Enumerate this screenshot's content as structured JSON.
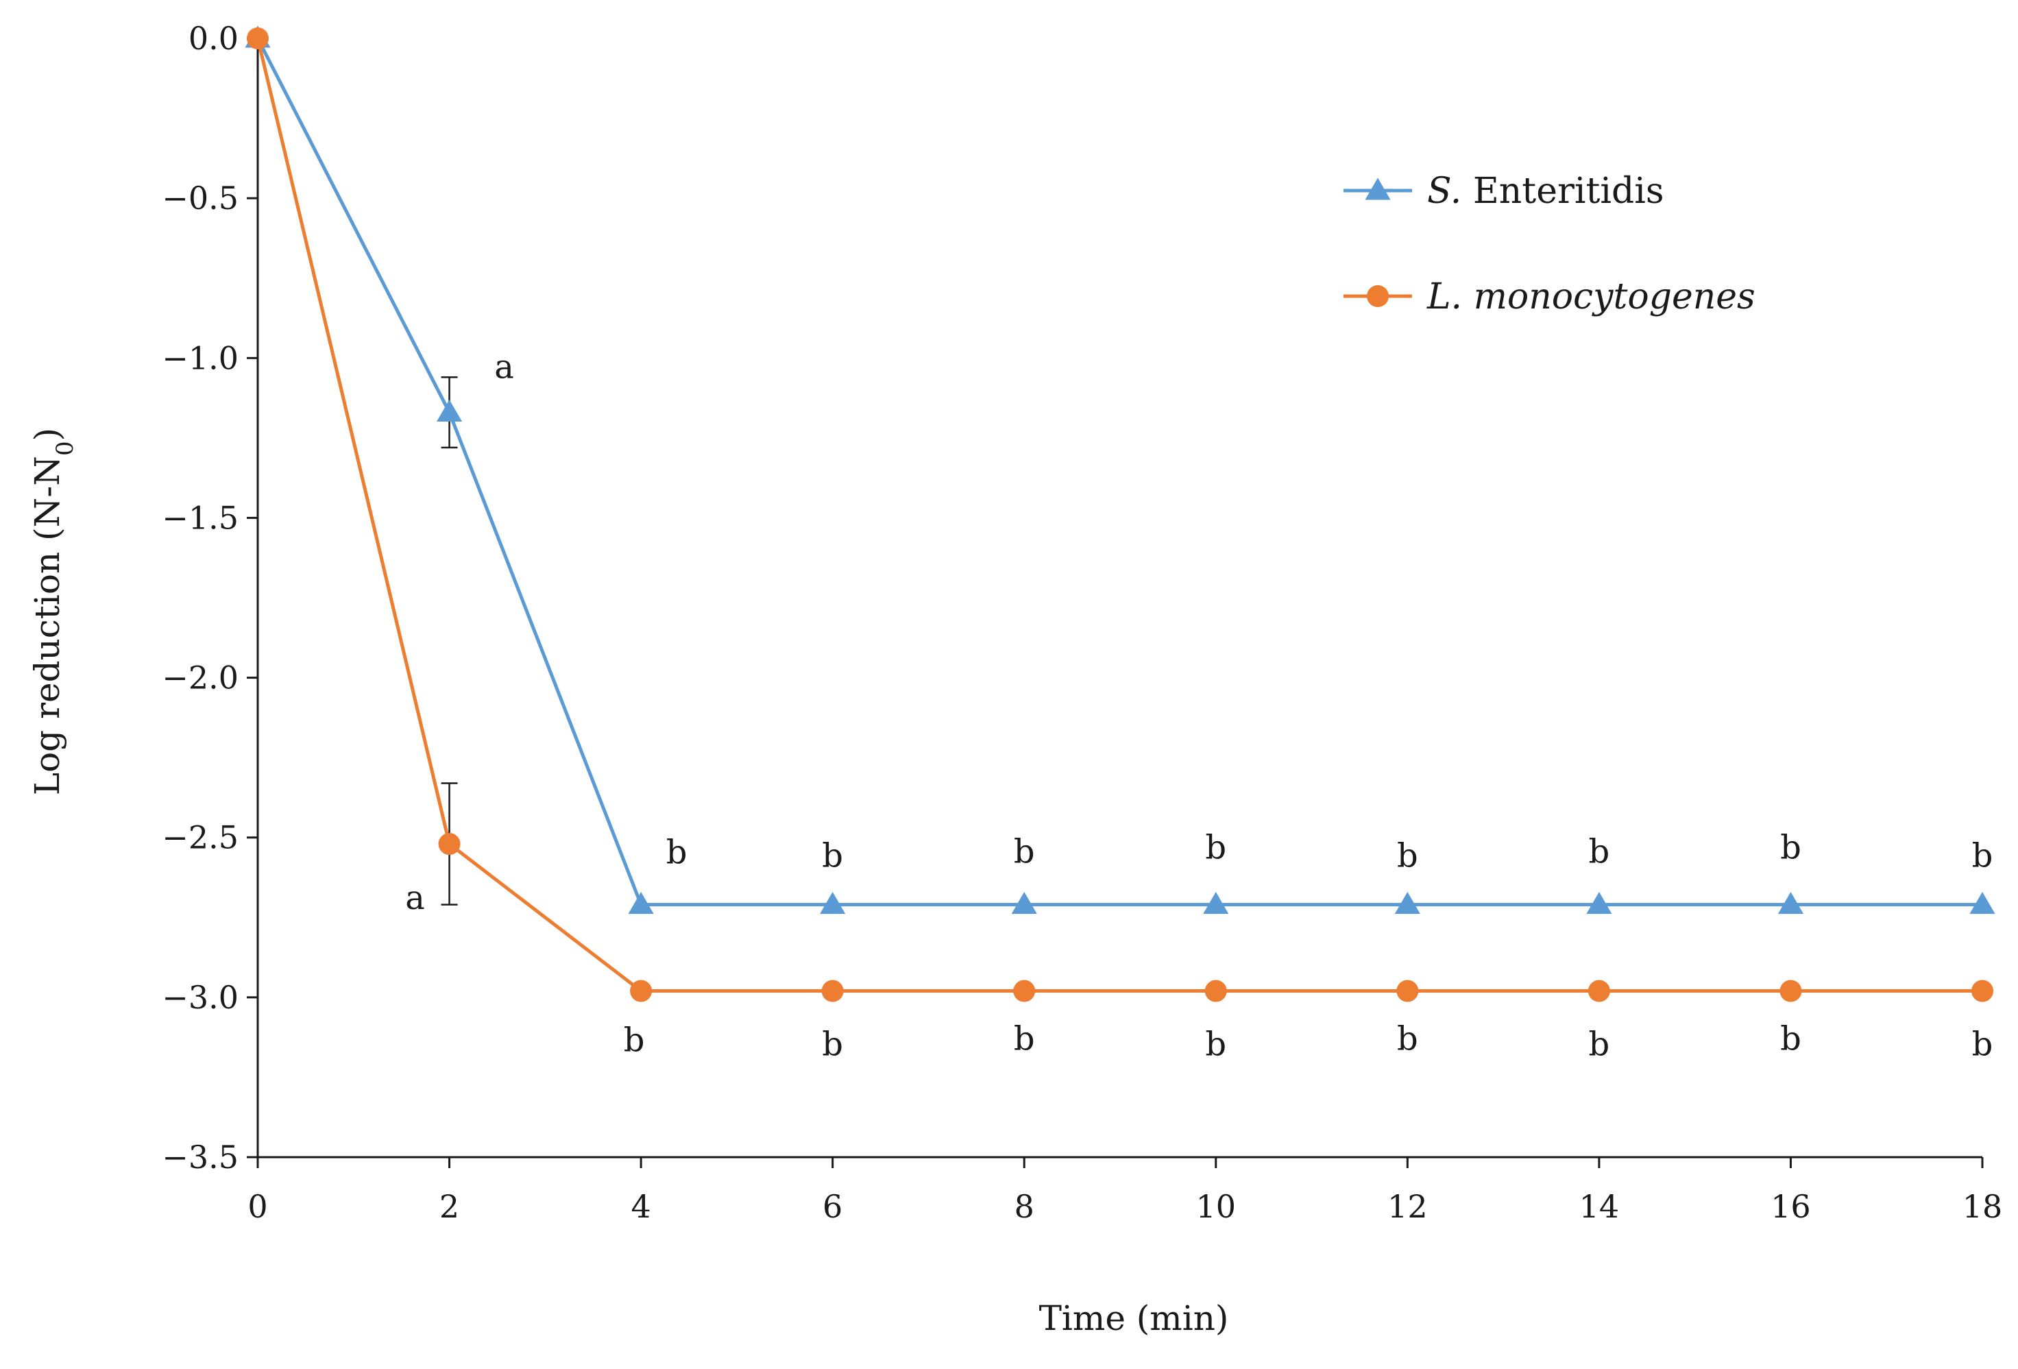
{
  "chart_data": {
    "type": "line",
    "title": "",
    "xlabel": "Time  (min)",
    "ylabel": "Log reduction  (N-N",
    "ylabel_subscript": "0",
    "ylabel_close": ")",
    "xlim": [
      0,
      18
    ],
    "ylim": [
      -3.5,
      0.0
    ],
    "x_ticks": [
      0,
      2,
      4,
      6,
      8,
      10,
      12,
      14,
      16,
      18
    ],
    "x_tick_labels": [
      "0",
      "2",
      "4",
      "6",
      "8",
      "10",
      "12",
      "14",
      "16",
      "18"
    ],
    "y_ticks": [
      0.0,
      -0.5,
      -1.0,
      -1.5,
      -2.0,
      -2.5,
      -3.0,
      -3.5
    ],
    "y_tick_labels": [
      "0.0",
      "−0.5",
      "−1.0",
      "−1.5",
      "−2.0",
      "−2.5",
      "−3.0",
      "−3.5"
    ],
    "grid": false,
    "legend_position": "top-right",
    "x": [
      0,
      2,
      4,
      6,
      8,
      10,
      12,
      14,
      16,
      18
    ],
    "series": [
      {
        "name": "S. Enteritidis",
        "name_italic": "S.",
        "name_rest": " Enteritidis",
        "marker": "triangle",
        "color": "#5b9bd5",
        "values": [
          0.0,
          -1.17,
          -2.71,
          -2.71,
          -2.71,
          -2.71,
          -2.71,
          -2.71,
          -2.71,
          -2.71
        ],
        "error": [
          0,
          0.11,
          0,
          0,
          0,
          0,
          0,
          0,
          0,
          0
        ],
        "letters": [
          "",
          "a",
          "b",
          "b",
          "b",
          "b",
          "b",
          "b",
          "b",
          "b"
        ]
      },
      {
        "name": "L. monocytogenes",
        "name_italic": "L. monocytogenes",
        "name_rest": "",
        "marker": "circle",
        "color": "#ed7d31",
        "values": [
          0.0,
          -2.52,
          -2.98,
          -2.98,
          -2.98,
          -2.98,
          -2.98,
          -2.98,
          -2.98,
          -2.98
        ],
        "error": [
          0,
          0.19,
          0,
          0,
          0,
          0,
          0,
          0,
          0,
          0
        ],
        "letters": [
          "",
          "a",
          "b",
          "b",
          "b",
          "b",
          "b",
          "b",
          "b",
          "b"
        ]
      }
    ]
  }
}
